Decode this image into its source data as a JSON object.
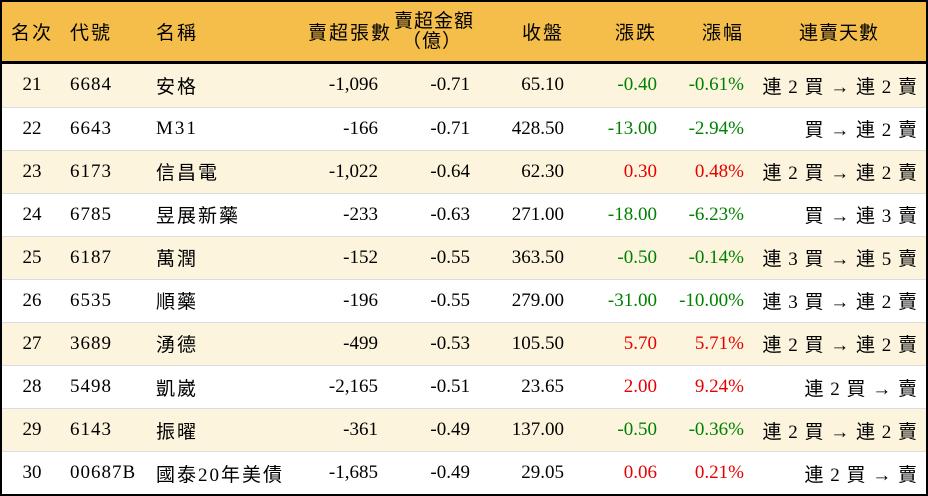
{
  "colors": {
    "header_bg": "#F5BE4B",
    "row_stripe": "#FCF4DC",
    "row_plain": "#FFFFFF",
    "up_red": "#E60000",
    "down_green": "#008000",
    "border": "#000000"
  },
  "table": {
    "columns": {
      "rank": "名次",
      "code": "代號",
      "name": "名稱",
      "sell_volume": "賣超張數",
      "sell_amount_line1": "賣超金額",
      "sell_amount_line2": "（億）",
      "close": "收盤",
      "change": "漲跌",
      "change_pct": "漲幅",
      "streak": "連賣天數"
    },
    "rows": [
      {
        "rank": "21",
        "code": "6684",
        "name": "安格",
        "sell_volume": "-1,096",
        "sell_amount": "-0.71",
        "close": "65.10",
        "change": "-0.40",
        "change_pct": "-0.61%",
        "streak": "連 2 買 → 連 2 賣"
      },
      {
        "rank": "22",
        "code": "6643",
        "name": "M31",
        "sell_volume": "-166",
        "sell_amount": "-0.71",
        "close": "428.50",
        "change": "-13.00",
        "change_pct": "-2.94%",
        "streak": "買 → 連 2 賣"
      },
      {
        "rank": "23",
        "code": "6173",
        "name": "信昌電",
        "sell_volume": "-1,022",
        "sell_amount": "-0.64",
        "close": "62.30",
        "change": "0.30",
        "change_pct": "0.48%",
        "streak": "連 2 買 → 連 2 賣"
      },
      {
        "rank": "24",
        "code": "6785",
        "name": "昱展新藥",
        "sell_volume": "-233",
        "sell_amount": "-0.63",
        "close": "271.00",
        "change": "-18.00",
        "change_pct": "-6.23%",
        "streak": "買 → 連 3 賣"
      },
      {
        "rank": "25",
        "code": "6187",
        "name": "萬潤",
        "sell_volume": "-152",
        "sell_amount": "-0.55",
        "close": "363.50",
        "change": "-0.50",
        "change_pct": "-0.14%",
        "streak": "連 3 買 → 連 5 賣"
      },
      {
        "rank": "26",
        "code": "6535",
        "name": "順藥",
        "sell_volume": "-196",
        "sell_amount": "-0.55",
        "close": "279.00",
        "change": "-31.00",
        "change_pct": "-10.00%",
        "streak": "連 3 買 → 連 2 賣"
      },
      {
        "rank": "27",
        "code": "3689",
        "name": "湧德",
        "sell_volume": "-499",
        "sell_amount": "-0.53",
        "close": "105.50",
        "change": "5.70",
        "change_pct": "5.71%",
        "streak": "連 2 買 → 連 2 賣"
      },
      {
        "rank": "28",
        "code": "5498",
        "name": "凱崴",
        "sell_volume": "-2,165",
        "sell_amount": "-0.51",
        "close": "23.65",
        "change": "2.00",
        "change_pct": "9.24%",
        "streak": "連 2 買 → 賣"
      },
      {
        "rank": "29",
        "code": "6143",
        "name": "振曜",
        "sell_volume": "-361",
        "sell_amount": "-0.49",
        "close": "137.00",
        "change": "-0.50",
        "change_pct": "-0.36%",
        "streak": "連 2 買 → 連 2 賣"
      },
      {
        "rank": "30",
        "code": "00687B",
        "name": "國泰20年美債",
        "sell_volume": "-1,685",
        "sell_amount": "-0.49",
        "close": "29.05",
        "change": "0.06",
        "change_pct": "0.21%",
        "streak": "連 2 買 → 賣"
      }
    ]
  }
}
